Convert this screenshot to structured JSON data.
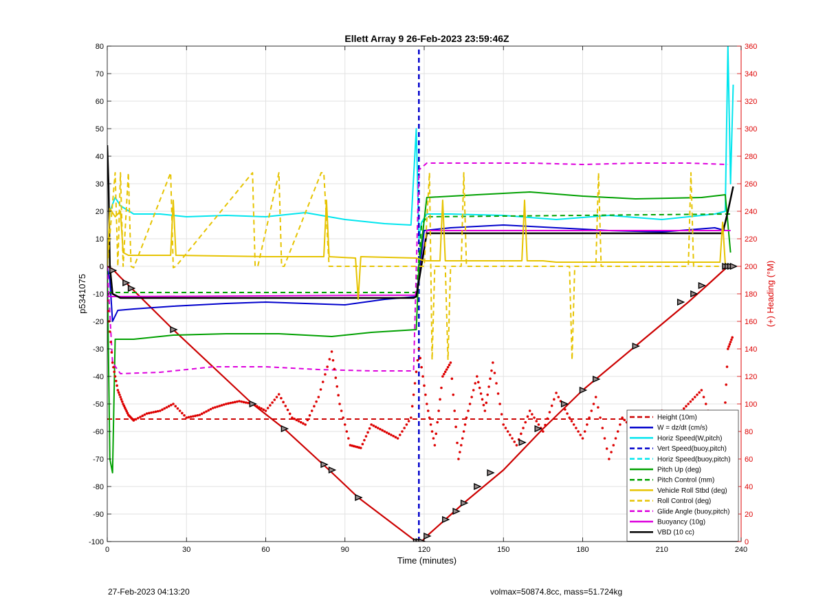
{
  "footer": {
    "timestamp": "27-Feb-2023 04:13:20",
    "summary": "volmax=50874.8cc, mass=51.724kg"
  },
  "chart_data": {
    "type": "line",
    "title": "Ellett Array 9 26-Feb-2023 23:59:46Z",
    "xlabel": "Time (minutes)",
    "ylabel": "p5341075",
    "y2label": "(+) Heading (°M)",
    "xlim": [
      0,
      240
    ],
    "ylim": [
      -100,
      80
    ],
    "y2lim": [
      0,
      360
    ],
    "xticks": [
      0,
      30,
      60,
      90,
      120,
      150,
      180,
      210,
      240
    ],
    "yticks": [
      -100,
      -90,
      -80,
      -70,
      -60,
      -50,
      -40,
      -30,
      -20,
      -10,
      0,
      10,
      20,
      30,
      40,
      50,
      60,
      70,
      80
    ],
    "y2ticks": [
      0,
      20,
      40,
      60,
      80,
      100,
      120,
      140,
      160,
      180,
      200,
      220,
      240,
      260,
      280,
      300,
      320,
      340,
      360
    ],
    "grid": true,
    "legend_position": "bottom-right",
    "colors": {
      "depth": "#cc0000",
      "heading": "#dd0000",
      "height": "#cc0000",
      "w_dzdt": "#0000cc",
      "horiz_speed_w": "#00e5ee",
      "vert_speed_buoy": "#0000cc",
      "horiz_speed_buoy": "#00e5ee",
      "pitch_up": "#00a000",
      "pitch_control": "#00a000",
      "roll": "#e6c300",
      "roll_control": "#e6c300",
      "glide_angle": "#dd00dd",
      "buoyancy": "#dd00dd",
      "vbd": "#000000",
      "right_axis": "#dd0000"
    },
    "legend": [
      {
        "label": "Height (10m)",
        "color": "#cc0000",
        "dash": true
      },
      {
        "label": "W = dz/dt (cm/s)",
        "color": "#0000cc",
        "dash": false
      },
      {
        "label": "Horiz Speed(W,pitch)",
        "color": "#00e5ee",
        "dash": false
      },
      {
        "label": "Vert Speed(buoy,pitch)",
        "color": "#0000cc",
        "dash": true
      },
      {
        "label": "Horiz Speed(buoy,pitch)",
        "color": "#00e5ee",
        "dash": true
      },
      {
        "label": "Pitch Up (deg)",
        "color": "#00a000",
        "dash": false
      },
      {
        "label": "Pitch Control (mm)",
        "color": "#00a000",
        "dash": true
      },
      {
        "label": "Vehicle Roll Stbd (deg)",
        "color": "#e6c300",
        "dash": false
      },
      {
        "label": "Roll Control (deg)",
        "color": "#e6c300",
        "dash": true
      },
      {
        "label": "Glide Angle (buoy,pitch)",
        "color": "#dd00dd",
        "dash": true
      },
      {
        "label": "Buoyancy (10g)",
        "color": "#dd00dd",
        "dash": false
      },
      {
        "label": "VBD (10 cc)",
        "color": "#000000",
        "dash": false
      }
    ],
    "series": [
      {
        "key": "depth",
        "axis": "left",
        "dash": false,
        "width": 2.2,
        "color": "#cc0000",
        "x": [
          0,
          2,
          5,
          25,
          55,
          67,
          84,
          95,
          117,
          119,
          121,
          128,
          135,
          150,
          165,
          180,
          200,
          220,
          227,
          235,
          237
        ],
        "y": [
          0,
          -1,
          -4,
          -23,
          -50,
          -59,
          -74,
          -84,
          -100,
          -100,
          -98,
          -92,
          -86,
          -74,
          -59,
          -45,
          -29,
          -13,
          -7,
          0,
          0
        ]
      },
      {
        "key": "height",
        "axis": "left",
        "dash": true,
        "width": 2,
        "color": "#cc0000",
        "x": [
          0,
          237
        ],
        "y": [
          -55.5,
          -55.5
        ]
      },
      {
        "key": "w_dzdt",
        "axis": "left",
        "dash": false,
        "width": 2,
        "color": "#0000cc",
        "x": [
          0,
          1,
          2,
          4,
          10,
          25,
          45,
          60,
          75,
          90,
          105,
          117,
          120,
          130,
          150,
          170,
          190,
          210,
          230,
          234,
          236
        ],
        "y": [
          0,
          -5,
          -20,
          -16,
          -15.5,
          -14.5,
          -13.5,
          -13,
          -13.5,
          -14,
          -12,
          -11,
          13,
          14,
          15,
          14,
          13,
          12.5,
          14,
          13,
          13
        ]
      },
      {
        "key": "horiz_speed_w",
        "axis": "left",
        "dash": false,
        "width": 2,
        "color": "#00e5ee",
        "x": [
          0,
          1,
          3,
          5,
          10,
          20,
          30,
          45,
          60,
          75,
          90,
          105,
          115,
          117,
          118,
          119,
          121,
          130,
          150,
          170,
          190,
          210,
          230,
          234,
          235,
          236,
          237
        ],
        "y": [
          0,
          20,
          25,
          22,
          19,
          19,
          18,
          18.5,
          18,
          19.5,
          17,
          15.5,
          15,
          50,
          10,
          16,
          19,
          19,
          18.5,
          17,
          18.5,
          17,
          19,
          20,
          80,
          30,
          66
        ]
      },
      {
        "key": "vert_speed_buoy",
        "axis": "left",
        "dash": true,
        "width": 2.5,
        "color": "#0000cc",
        "x": [
          118,
          118
        ],
        "y": [
          -100,
          80
        ]
      },
      {
        "key": "pitch_up",
        "axis": "left",
        "dash": false,
        "width": 2,
        "color": "#00a000",
        "x": [
          0,
          1,
          2,
          3,
          10,
          25,
          45,
          65,
          85,
          100,
          117,
          118,
          121,
          140,
          160,
          180,
          200,
          225,
          234,
          236
        ],
        "y": [
          0,
          -70,
          -75,
          -26.5,
          -26.5,
          -25,
          -24.5,
          -24.5,
          -25.5,
          -24,
          -23,
          0,
          25,
          26,
          27,
          25.5,
          24.5,
          25,
          26,
          5
        ]
      },
      {
        "key": "pitch_control",
        "axis": "left",
        "dash": true,
        "width": 2,
        "color": "#00a000",
        "x": [
          0,
          117,
          119,
          121,
          236
        ],
        "y": [
          -9.5,
          -9.5,
          15,
          18,
          19
        ]
      },
      {
        "key": "glide_angle",
        "axis": "left",
        "dash": true,
        "width": 2,
        "color": "#dd00dd",
        "x": [
          0,
          2,
          5,
          20,
          40,
          60,
          80,
          100,
          116,
          118,
          121,
          140,
          160,
          180,
          200,
          220,
          235
        ],
        "y": [
          0,
          -35,
          -39,
          -38.5,
          -36.5,
          -36.5,
          -37.5,
          -38,
          -38,
          35,
          37.5,
          37.5,
          37.5,
          37,
          37.5,
          37.5,
          37
        ]
      },
      {
        "key": "buoyancy",
        "axis": "left",
        "dash": false,
        "width": 2,
        "color": "#dd00dd",
        "x": [
          0,
          117,
          121,
          236
        ],
        "y": [
          -11,
          -10.5,
          13,
          13
        ]
      },
      {
        "key": "vbd",
        "axis": "left",
        "dash": false,
        "width": 2.5,
        "color": "#000000",
        "x": [
          0,
          0.5,
          1,
          2,
          5,
          116,
          117,
          121,
          233,
          235,
          237
        ],
        "y": [
          44,
          30,
          0,
          -10,
          -11.5,
          -11.5,
          -11,
          12,
          12,
          20,
          29
        ]
      },
      {
        "key": "roll",
        "axis": "left",
        "dash": false,
        "width": 2,
        "color": "#e6c300",
        "x": [
          0,
          1,
          3,
          5,
          6,
          8,
          10,
          24,
          25,
          26,
          60,
          82,
          83,
          84,
          94,
          95,
          96,
          117,
          120,
          126,
          127,
          128,
          150,
          157,
          158,
          159,
          165,
          170,
          180,
          200,
          232,
          233,
          234,
          236
        ],
        "y": [
          0,
          21,
          18,
          20,
          5,
          4,
          4,
          4,
          24,
          4,
          3.5,
          3.5,
          24,
          3.5,
          3,
          -12,
          3.5,
          3,
          2,
          2,
          24,
          2,
          2,
          2,
          24,
          2,
          2,
          1.5,
          1.5,
          1.5,
          1.5,
          16,
          1,
          0
        ]
      },
      {
        "key": "roll_control",
        "axis": "left",
        "dash": true,
        "width": 2,
        "color": "#e6c300",
        "x": [
          0,
          3,
          4,
          5,
          6,
          8,
          9,
          10,
          24,
          25,
          26,
          55,
          56,
          57,
          65,
          66,
          67,
          81,
          82,
          84,
          85,
          117,
          120,
          122,
          123,
          124,
          128,
          129,
          130,
          134,
          135,
          136,
          150,
          170,
          175,
          176,
          177,
          185,
          186,
          187,
          210,
          220,
          221,
          222,
          236
        ],
        "y": [
          0,
          34,
          0,
          34,
          0,
          34,
          0,
          -0.5,
          34,
          -0.5,
          0,
          34,
          0,
          0,
          34,
          0,
          0,
          34,
          34,
          0,
          0,
          0,
          0,
          34,
          -34,
          0,
          0,
          -34,
          0,
          0,
          34,
          0,
          0,
          0,
          0,
          -34,
          0,
          0,
          34,
          0,
          0,
          0,
          34,
          0,
          0
        ]
      },
      {
        "key": "heading",
        "axis": "right",
        "dash": false,
        "width": 0,
        "dotted": true,
        "color": "#dd0000",
        "x": [
          0,
          2,
          4,
          6,
          8,
          10,
          15,
          20,
          25,
          30,
          35,
          40,
          45,
          50,
          55,
          60,
          65,
          70,
          75,
          80,
          85,
          88,
          92,
          96,
          100,
          105,
          110,
          115,
          118,
          121,
          124,
          127,
          130,
          133,
          136,
          140,
          143,
          146,
          150,
          155,
          160,
          165,
          170,
          175,
          180,
          185,
          190,
          195,
          200,
          205,
          210,
          215,
          220,
          225,
          230,
          233,
          235,
          237
        ],
        "y": [
          175,
          130,
          110,
          100,
          92,
          88,
          93,
          95,
          100,
          90,
          92,
          97,
          100,
          102,
          100,
          95,
          107,
          90,
          85,
          105,
          138,
          100,
          70,
          68,
          85,
          80,
          75,
          90,
          140,
          100,
          70,
          120,
          130,
          60,
          90,
          120,
          95,
          130,
          85,
          70,
          95,
          80,
          108,
          90,
          75,
          105,
          60,
          90,
          80,
          85,
          95,
          90,
          100,
          110,
          80,
          62,
          140,
          150
        ]
      }
    ],
    "markers": {
      "x": [
        2,
        7,
        9,
        25,
        55,
        67,
        82,
        85,
        95,
        117,
        118,
        119,
        121,
        128,
        132,
        135,
        140,
        145,
        157,
        163,
        173,
        180,
        185,
        200,
        217,
        222,
        225,
        234,
        235,
        236,
        237
      ],
      "y": [
        -1.5,
        -6,
        -8,
        -23,
        -50,
        -59,
        -72,
        -74,
        -84,
        -100,
        -100,
        -100,
        -98,
        -92,
        -89,
        -86,
        -80,
        -75,
        -64,
        -59,
        -50,
        -45,
        -41,
        -29,
        -13,
        -10,
        -7,
        0,
        0,
        0,
        0
      ]
    }
  }
}
